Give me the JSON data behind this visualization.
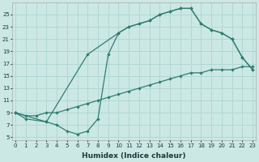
{
  "xlabel": "Humidex (Indice chaleur)",
  "bg_color": "#cce8e4",
  "grid_color": "#b0d8d4",
  "line_color": "#2e7d72",
  "line1_x": [
    0,
    1,
    2,
    3,
    4,
    5,
    6,
    7,
    8,
    9,
    10,
    11,
    12,
    13,
    14,
    15,
    16,
    17,
    18,
    19,
    20,
    21,
    22,
    23
  ],
  "line1_y": [
    9,
    8.5,
    8.5,
    9,
    9,
    9.5,
    10,
    10.5,
    11,
    11.5,
    12,
    12.5,
    13,
    13.5,
    14,
    14.5,
    15,
    15.5,
    15.5,
    16,
    16,
    16,
    16.5,
    16.5
  ],
  "line2_x": [
    0,
    1,
    3,
    4,
    5,
    6,
    7,
    8,
    9,
    10,
    11,
    12,
    13,
    14,
    15,
    16,
    17,
    18,
    19,
    20,
    21,
    22,
    23
  ],
  "line2_y": [
    9,
    8,
    7.5,
    7,
    6,
    5.5,
    6,
    8,
    18.5,
    22,
    23,
    23.5,
    24,
    25,
    25.5,
    26,
    26,
    23.5,
    22.5,
    22,
    21,
    18,
    16
  ],
  "line3_x": [
    0,
    3,
    7,
    10,
    11,
    12,
    13,
    14,
    15,
    16,
    17,
    18,
    19,
    20,
    21,
    22,
    23
  ],
  "line3_y": [
    9,
    7.5,
    18.5,
    22,
    23,
    23.5,
    24,
    25,
    25.5,
    26,
    26,
    23.5,
    22.5,
    22,
    21,
    18,
    16
  ],
  "yticks": [
    5,
    7,
    9,
    11,
    13,
    15,
    17,
    19,
    21,
    23,
    25
  ],
  "xticks": [
    0,
    1,
    2,
    3,
    4,
    5,
    6,
    7,
    8,
    9,
    10,
    11,
    12,
    13,
    14,
    15,
    16,
    17,
    18,
    19,
    20,
    21,
    22,
    23
  ],
  "xlim": [
    -0.3,
    23.3
  ],
  "ylim": [
    4.5,
    27
  ]
}
